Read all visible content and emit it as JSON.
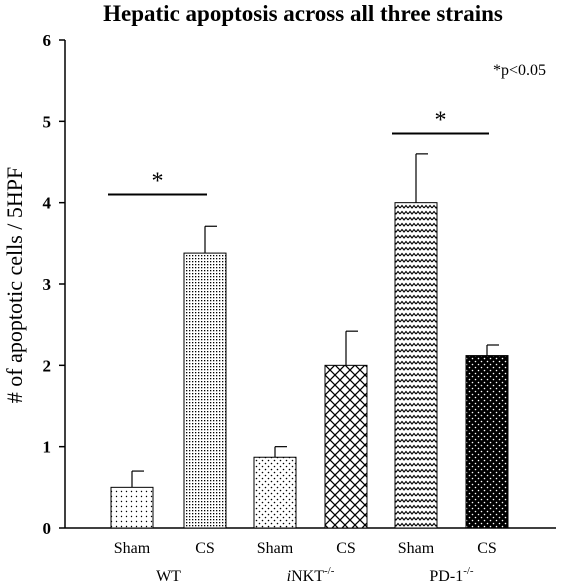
{
  "chart_data": {
    "type": "bar",
    "title": "Hepatic apoptosis across all three strains",
    "ylabel": "# of apoptotic cells / 5HPF",
    "xlabel": "",
    "ylim": [
      0,
      6
    ],
    "yticks": [
      "0",
      "1",
      "2",
      "3",
      "4",
      "5",
      "6"
    ],
    "grid": false,
    "categories": [
      "Sham",
      "CS",
      "Sham",
      "CS",
      "Sham",
      "CS"
    ],
    "values": [
      0.5,
      3.38,
      0.87,
      2.0,
      4.0,
      2.12
    ],
    "errors": [
      0.2,
      0.33,
      0.13,
      0.42,
      0.6,
      0.13
    ],
    "patterns": [
      "fine-dots",
      "dense-dots",
      "diamond-dots",
      "cross-hatch",
      "zigzag",
      "black-dots"
    ],
    "groups": [
      {
        "label": "WT",
        "sup": "",
        "italic_prefix": ""
      },
      {
        "label": "NKT",
        "sup": "-/-",
        "italic_prefix": "i"
      },
      {
        "label": "PD-1",
        "sup": "-/-",
        "italic_prefix": ""
      }
    ],
    "significance": [
      {
        "from": 0,
        "to": 1,
        "y": 4.1,
        "symbol": "*"
      },
      {
        "from": 4,
        "to": 5,
        "y": 4.85,
        "symbol": "*"
      }
    ],
    "annotation": "*p<0.05"
  }
}
